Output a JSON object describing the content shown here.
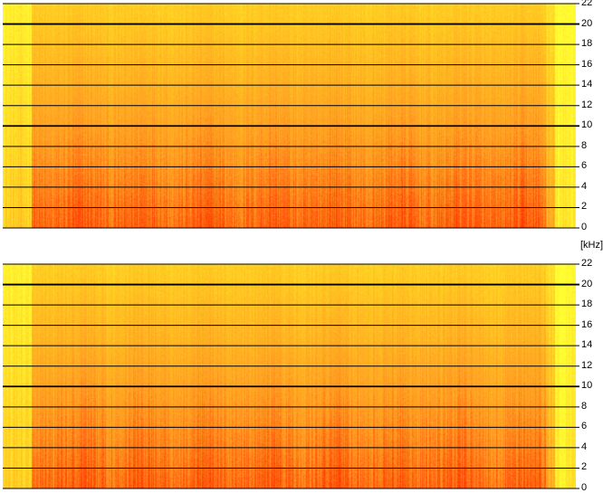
{
  "chart_data": [
    {
      "type": "heatmap",
      "title": "",
      "xlabel": "",
      "ylabel": "[kHz]",
      "ylim": [
        0,
        22
      ],
      "y_ticks": [
        "22",
        "20",
        "18",
        "16",
        "14",
        "12",
        "10",
        "8",
        "6",
        "4",
        "2",
        "0"
      ],
      "grid": true,
      "colormap": [
        "#ffff33",
        "#ffcc22",
        "#ff9922",
        "#ff3300"
      ]
    },
    {
      "type": "heatmap",
      "title": "",
      "xlabel": "",
      "ylabel": "",
      "ylim": [
        0,
        22
      ],
      "y_ticks": [
        "22",
        "20",
        "18",
        "16",
        "14",
        "12",
        "10",
        "8",
        "6",
        "4",
        "2",
        "0"
      ],
      "grid": true,
      "colormap": [
        "#ffff33",
        "#ffcc22",
        "#ff9922",
        "#ff3300"
      ]
    }
  ],
  "unit_label": "[kHz]"
}
